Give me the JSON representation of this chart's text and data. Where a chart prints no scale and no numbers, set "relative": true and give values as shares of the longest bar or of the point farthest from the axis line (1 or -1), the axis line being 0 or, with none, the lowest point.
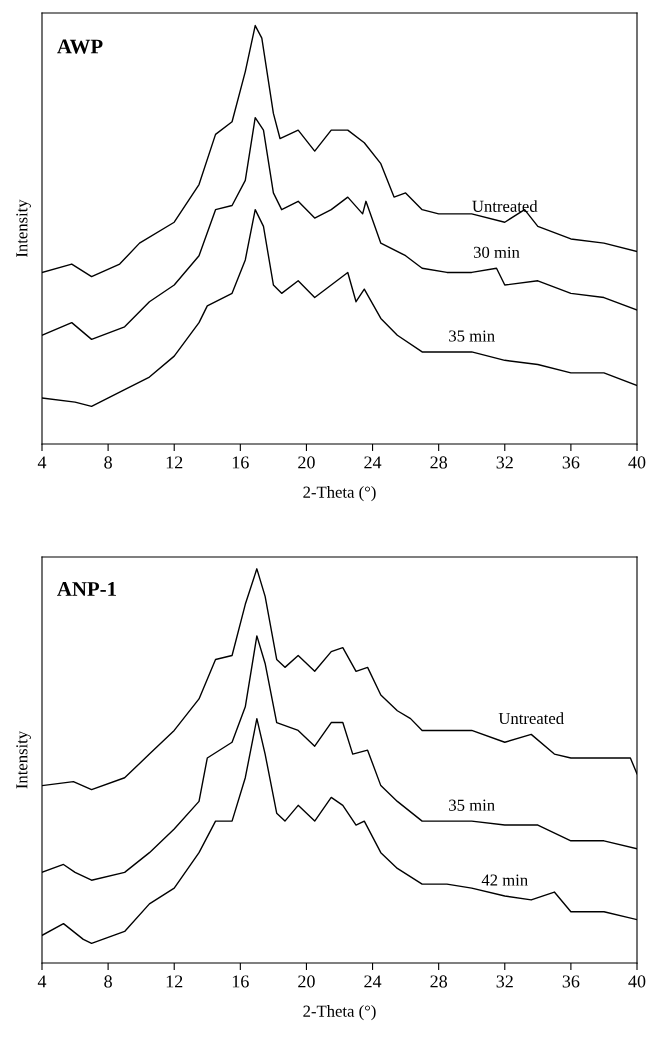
{
  "chart_data": [
    {
      "type": "line",
      "title": "AWP",
      "xlabel": "2-Theta (°)",
      "ylabel": "Intensity",
      "relative": true,
      "xlim": [
        4,
        40
      ],
      "xticks": [
        4,
        8,
        12,
        16,
        20,
        24,
        28,
        32,
        36,
        40
      ],
      "grid": false,
      "legend": false,
      "marker": "none",
      "line_style": "solid",
      "series": [
        {
          "name": "Untreated",
          "color": "#000000",
          "x": [
            4,
            5.8,
            7,
            8.7,
            9.9,
            12,
            13.5,
            14.5,
            15.5,
            16.3,
            16.9,
            17.3,
            18,
            18.4,
            19.5,
            20.5,
            21.5,
            22.5,
            23.5,
            24.5,
            25.3,
            26,
            27,
            28,
            30,
            32,
            33.2,
            34,
            36,
            38,
            40
          ],
          "values": [
            0.41,
            0.43,
            0.4,
            0.43,
            0.48,
            0.53,
            0.62,
            0.74,
            0.77,
            0.89,
            1.0,
            0.97,
            0.79,
            0.73,
            0.75,
            0.7,
            0.75,
            0.75,
            0.72,
            0.67,
            0.59,
            0.6,
            0.56,
            0.55,
            0.55,
            0.53,
            0.56,
            0.52,
            0.49,
            0.48,
            0.46
          ]
        },
        {
          "name": "30 min",
          "color": "#000000",
          "x": [
            4,
            5.8,
            7,
            9,
            10.5,
            12,
            13.5,
            14.5,
            15.5,
            16.3,
            16.9,
            17.4,
            18,
            18.5,
            19.5,
            20.5,
            21.5,
            22.5,
            23.4,
            23.6,
            24.5,
            26,
            27,
            28.5,
            30,
            31.5,
            32,
            34,
            36,
            38,
            40
          ],
          "values": [
            0.26,
            0.29,
            0.25,
            0.28,
            0.34,
            0.38,
            0.45,
            0.56,
            0.57,
            0.63,
            0.78,
            0.75,
            0.6,
            0.56,
            0.58,
            0.54,
            0.56,
            0.59,
            0.55,
            0.58,
            0.48,
            0.45,
            0.42,
            0.41,
            0.41,
            0.42,
            0.38,
            0.39,
            0.36,
            0.35,
            0.32
          ]
        },
        {
          "name": "35 min",
          "color": "#000000",
          "x": [
            4,
            6,
            7,
            9,
            10.5,
            12,
            13.5,
            14,
            15.5,
            16.3,
            16.9,
            17.4,
            18,
            18.5,
            19.5,
            20.5,
            21.5,
            22.5,
            23,
            23.5,
            24.5,
            25.5,
            27,
            28.5,
            30,
            32,
            34,
            36,
            38,
            40
          ],
          "values": [
            0.11,
            0.1,
            0.09,
            0.13,
            0.16,
            0.21,
            0.29,
            0.33,
            0.36,
            0.44,
            0.56,
            0.52,
            0.38,
            0.36,
            0.39,
            0.35,
            0.38,
            0.41,
            0.34,
            0.37,
            0.3,
            0.26,
            0.22,
            0.22,
            0.22,
            0.2,
            0.19,
            0.17,
            0.17,
            0.14
          ]
        }
      ]
    },
    {
      "type": "line",
      "title": "ANP-1",
      "xlabel": "2-Theta (°)",
      "ylabel": "Intensity",
      "relative": true,
      "xlim": [
        4,
        40
      ],
      "xticks": [
        4,
        8,
        12,
        16,
        20,
        24,
        28,
        32,
        36,
        40
      ],
      "grid": false,
      "legend": false,
      "marker": "none",
      "line_style": "solid",
      "series": [
        {
          "name": "Untreated",
          "color": "#000000",
          "x": [
            4,
            5.9,
            7,
            9,
            10.5,
            12,
            13.5,
            14.5,
            15.5,
            16.3,
            17,
            17.5,
            18.2,
            18.7,
            19.5,
            20.5,
            21.5,
            22.2,
            23,
            23.7,
            24.5,
            25.5,
            26.3,
            27,
            28.5,
            30,
            32,
            33.6,
            35,
            36,
            38,
            39.6,
            40
          ],
          "values": [
            0.45,
            0.46,
            0.44,
            0.47,
            0.53,
            0.59,
            0.67,
            0.77,
            0.78,
            0.91,
            1.0,
            0.93,
            0.77,
            0.75,
            0.78,
            0.74,
            0.79,
            0.8,
            0.74,
            0.75,
            0.68,
            0.64,
            0.62,
            0.59,
            0.59,
            0.59,
            0.56,
            0.58,
            0.53,
            0.52,
            0.52,
            0.52,
            0.48
          ]
        },
        {
          "name": "35 min",
          "color": "#000000",
          "x": [
            4,
            5.3,
            6,
            7,
            9,
            10.5,
            12,
            13.5,
            14,
            15.5,
            16.3,
            17,
            17.5,
            18.2,
            19.5,
            20.5,
            21.5,
            22.2,
            22.8,
            23.7,
            24.5,
            25.5,
            27,
            28.5,
            30,
            32,
            34,
            36,
            38,
            40
          ],
          "values": [
            0.23,
            0.25,
            0.23,
            0.21,
            0.23,
            0.28,
            0.34,
            0.41,
            0.52,
            0.56,
            0.65,
            0.83,
            0.76,
            0.61,
            0.59,
            0.55,
            0.61,
            0.61,
            0.53,
            0.54,
            0.45,
            0.41,
            0.36,
            0.36,
            0.36,
            0.35,
            0.35,
            0.31,
            0.31,
            0.29
          ]
        },
        {
          "name": "42 min",
          "color": "#000000",
          "x": [
            4,
            5.3,
            6.5,
            7,
            9,
            10.5,
            12,
            13.5,
            14.5,
            15.5,
            16.3,
            17,
            17.5,
            18.2,
            18.7,
            19.5,
            20.5,
            21.5,
            22.2,
            23,
            23.5,
            24.5,
            25.5,
            27,
            28.5,
            30,
            32,
            33.6,
            35,
            36,
            38,
            40
          ],
          "values": [
            0.07,
            0.1,
            0.06,
            0.05,
            0.08,
            0.15,
            0.19,
            0.28,
            0.36,
            0.36,
            0.47,
            0.62,
            0.53,
            0.38,
            0.36,
            0.4,
            0.36,
            0.42,
            0.4,
            0.35,
            0.36,
            0.28,
            0.24,
            0.2,
            0.2,
            0.19,
            0.17,
            0.16,
            0.18,
            0.13,
            0.13,
            0.11
          ]
        }
      ]
    }
  ]
}
